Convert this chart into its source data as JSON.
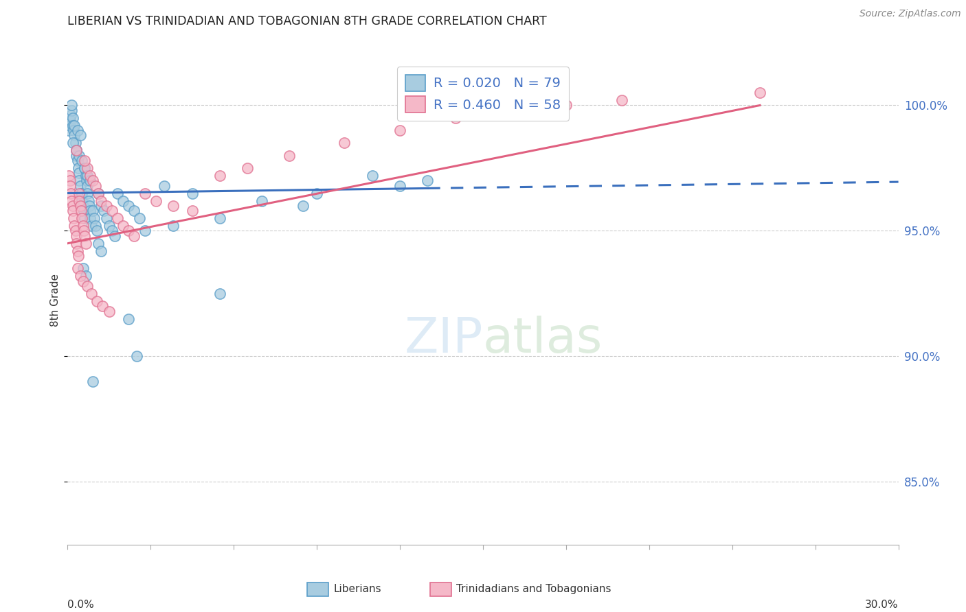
{
  "title": "LIBERIAN VS TRINIDADIAN AND TOBAGONIAN 8TH GRADE CORRELATION CHART",
  "source": "Source: ZipAtlas.com",
  "ylabel": "8th Grade",
  "right_yticks": [
    85.0,
    90.0,
    95.0,
    100.0
  ],
  "right_yticklabels": [
    "85.0%",
    "90.0%",
    "95.0%",
    "100.0%"
  ],
  "xlim": [
    0.0,
    30.0
  ],
  "ylim": [
    82.5,
    102.0
  ],
  "blue_R": 0.02,
  "blue_N": 79,
  "pink_R": 0.46,
  "pink_N": 58,
  "blue_face": "#a8cce0",
  "blue_edge": "#5a9ec9",
  "pink_face": "#f5b8c8",
  "pink_edge": "#e07090",
  "blue_line": "#3a6fbd",
  "pink_line": "#e06080",
  "blue_dots_x": [
    0.05,
    0.08,
    0.1,
    0.12,
    0.15,
    0.15,
    0.18,
    0.2,
    0.22,
    0.25,
    0.28,
    0.3,
    0.32,
    0.35,
    0.38,
    0.4,
    0.42,
    0.45,
    0.48,
    0.5,
    0.52,
    0.55,
    0.58,
    0.6,
    0.62,
    0.65,
    0.68,
    0.7,
    0.72,
    0.75,
    0.78,
    0.8,
    0.82,
    0.85,
    0.9,
    0.95,
    1.0,
    1.05,
    1.1,
    1.2,
    1.3,
    1.4,
    1.5,
    1.6,
    1.7,
    1.8,
    2.0,
    2.2,
    2.4,
    2.6,
    0.2,
    0.3,
    0.4,
    0.5,
    0.6,
    0.7,
    0.8,
    0.25,
    0.35,
    0.45,
    3.5,
    4.5,
    5.5,
    7.0,
    9.0,
    12.0,
    13.0,
    0.55,
    0.65,
    1.1,
    1.2,
    2.8,
    3.8,
    5.5,
    8.5,
    11.0,
    2.2,
    2.5,
    0.9
  ],
  "blue_dots_y": [
    99.0,
    99.2,
    99.4,
    99.6,
    99.8,
    100.0,
    99.5,
    99.2,
    99.0,
    98.8,
    98.5,
    98.2,
    98.0,
    97.8,
    97.5,
    97.3,
    97.0,
    96.8,
    96.5,
    96.5,
    96.2,
    96.0,
    95.8,
    95.5,
    97.5,
    97.2,
    97.0,
    96.8,
    96.5,
    96.2,
    96.0,
    95.8,
    95.5,
    95.2,
    95.8,
    95.5,
    95.2,
    95.0,
    96.5,
    96.0,
    95.8,
    95.5,
    95.2,
    95.0,
    94.8,
    96.5,
    96.2,
    96.0,
    95.8,
    95.5,
    98.5,
    98.2,
    98.0,
    97.8,
    97.5,
    97.2,
    97.0,
    99.2,
    99.0,
    98.8,
    96.8,
    96.5,
    92.5,
    96.2,
    96.5,
    96.8,
    97.0,
    93.5,
    93.2,
    94.5,
    94.2,
    95.0,
    95.2,
    95.5,
    96.0,
    97.2,
    91.5,
    90.0,
    89.0
  ],
  "pink_dots_x": [
    0.05,
    0.08,
    0.1,
    0.12,
    0.15,
    0.18,
    0.2,
    0.22,
    0.25,
    0.28,
    0.3,
    0.32,
    0.35,
    0.38,
    0.4,
    0.42,
    0.45,
    0.48,
    0.5,
    0.55,
    0.58,
    0.6,
    0.65,
    0.7,
    0.8,
    0.9,
    1.0,
    1.1,
    1.2,
    1.4,
    1.6,
    1.8,
    2.0,
    2.2,
    2.4,
    2.8,
    3.2,
    3.8,
    4.5,
    0.35,
    0.45,
    0.55,
    0.7,
    0.85,
    1.05,
    1.25,
    1.5,
    5.5,
    6.5,
    8.0,
    10.0,
    12.0,
    14.0,
    20.0,
    25.0,
    18.0,
    0.3,
    0.6
  ],
  "pink_dots_y": [
    97.2,
    97.0,
    96.8,
    96.5,
    96.2,
    96.0,
    95.8,
    95.5,
    95.2,
    95.0,
    94.8,
    94.5,
    94.2,
    94.0,
    96.5,
    96.2,
    96.0,
    95.8,
    95.5,
    95.2,
    95.0,
    94.8,
    94.5,
    97.5,
    97.2,
    97.0,
    96.8,
    96.5,
    96.2,
    96.0,
    95.8,
    95.5,
    95.2,
    95.0,
    94.8,
    96.5,
    96.2,
    96.0,
    95.8,
    93.5,
    93.2,
    93.0,
    92.8,
    92.5,
    92.2,
    92.0,
    91.8,
    97.2,
    97.5,
    98.0,
    98.5,
    99.0,
    99.5,
    100.2,
    100.5,
    100.0,
    98.2,
    97.8
  ],
  "blue_solid_xmax": 13.0,
  "pink_solid_xmax": 25.0
}
